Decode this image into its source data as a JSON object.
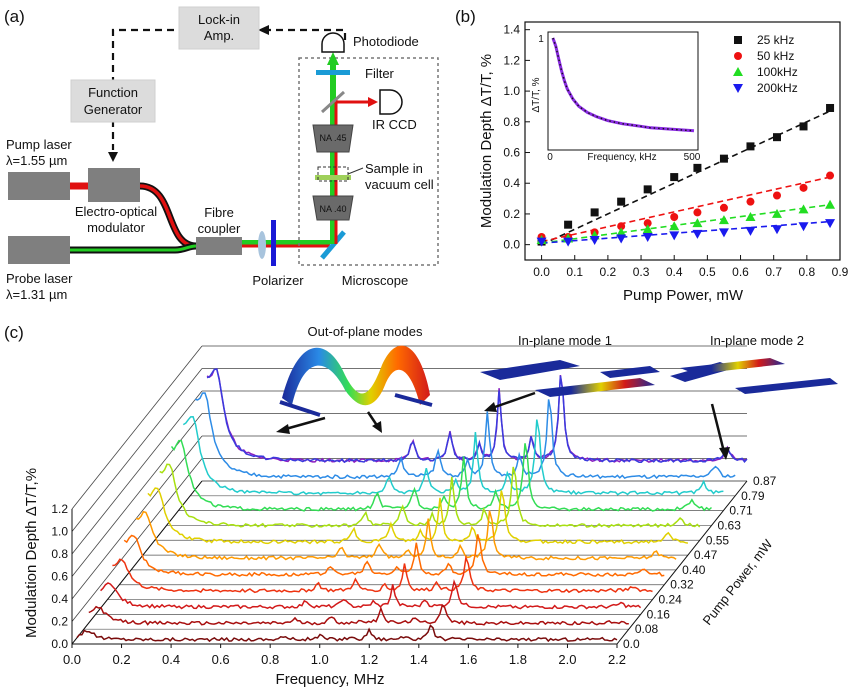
{
  "panels": {
    "a": "(a)",
    "b": "(b)",
    "c": "(c)"
  },
  "setup": {
    "lockin_line1": "Lock-in",
    "lockin_line2": "Amp.",
    "photodiode": "Photodiode",
    "function_line1": "Function",
    "function_line2": "Generator",
    "filter": "Filter",
    "ir_ccd": "IR CCD",
    "na45": "NA .45",
    "na40": "NA .40",
    "sample_line1": "Sample in",
    "sample_line2": "vacuum cell",
    "pump_line1": "Pump laser",
    "pump_line2": "λ=1.55 µm",
    "eom_line1": "Electro-optical",
    "eom_line2": "modulator",
    "fibre_line1": "Fibre",
    "fibre_line2": "coupler",
    "probe_line1": "Probe laser",
    "probe_line2": "λ=1.31 µm",
    "polarizer": "Polarizer",
    "microscope": "Microscope"
  },
  "chart_data": [
    {
      "type": "scatter",
      "panel": "b",
      "xlabel": "Pump Power, mW",
      "ylabel": "Modulation Depth ΔT/T, %",
      "xlim": [
        -0.05,
        0.9
      ],
      "ylim": [
        -0.1,
        1.45
      ],
      "xticks": [
        "0.0",
        "0.1",
        "0.2",
        "0.3",
        "0.4",
        "0.5",
        "0.6",
        "0.7",
        "0.8",
        "0.9"
      ],
      "yticks": [
        "0.0",
        "0.2",
        "0.4",
        "0.6",
        "0.8",
        "1.0",
        "1.2",
        "1.4"
      ],
      "legend_position": "top-right",
      "series": [
        {
          "name": "25  kHz",
          "color": "#111111",
          "marker": "square",
          "x": [
            0.0,
            0.08,
            0.16,
            0.24,
            0.32,
            0.4,
            0.47,
            0.55,
            0.63,
            0.71,
            0.79,
            0.87
          ],
          "y": [
            0.02,
            0.13,
            0.21,
            0.28,
            0.36,
            0.44,
            0.5,
            0.56,
            0.64,
            0.7,
            0.77,
            0.89
          ],
          "fit": [
            0.0,
            0.0,
            0.87,
            0.87
          ]
        },
        {
          "name": "50  kHz",
          "color": "#ee1111",
          "marker": "circle",
          "x": [
            0.0,
            0.08,
            0.16,
            0.24,
            0.32,
            0.4,
            0.47,
            0.55,
            0.63,
            0.71,
            0.79,
            0.87
          ],
          "y": [
            0.05,
            0.05,
            0.08,
            0.12,
            0.14,
            0.18,
            0.21,
            0.24,
            0.28,
            0.32,
            0.37,
            0.45
          ],
          "fit": [
            0.0,
            0.02,
            0.87,
            0.44
          ]
        },
        {
          "name": "100kHz",
          "color": "#22dd22",
          "marker": "triangle-up",
          "x": [
            0.0,
            0.08,
            0.16,
            0.24,
            0.32,
            0.4,
            0.47,
            0.55,
            0.63,
            0.71,
            0.79,
            0.87
          ],
          "y": [
            0.03,
            0.04,
            0.06,
            0.08,
            0.1,
            0.12,
            0.14,
            0.16,
            0.18,
            0.2,
            0.23,
            0.26
          ],
          "fit": [
            0.0,
            0.01,
            0.87,
            0.26
          ]
        },
        {
          "name": "200kHz",
          "color": "#1a1aee",
          "marker": "triangle-down",
          "x": [
            0.0,
            0.08,
            0.16,
            0.24,
            0.32,
            0.4,
            0.47,
            0.55,
            0.63,
            0.71,
            0.79,
            0.87
          ],
          "y": [
            0.02,
            0.02,
            0.03,
            0.04,
            0.05,
            0.06,
            0.07,
            0.08,
            0.09,
            0.1,
            0.12,
            0.14
          ],
          "fit": [
            0.0,
            0.01,
            0.87,
            0.15
          ]
        }
      ]
    },
    {
      "type": "line",
      "panel": "b-inset",
      "xlabel": "Frequency, kHz",
      "ylabel": "ΔT/T, %",
      "xlim": [
        0,
        500
      ],
      "ylim": [
        0,
        1
      ],
      "xticks": [
        "0",
        "500"
      ],
      "yticks": [
        "0",
        "1"
      ],
      "series": [
        {
          "name": "",
          "color": "#8a2be2",
          "x": [
            10,
            20,
            30,
            40,
            50,
            60,
            80,
            100,
            130,
            160,
            200,
            250,
            300,
            350,
            400,
            450,
            500
          ],
          "y": [
            1.0,
            0.92,
            0.8,
            0.68,
            0.58,
            0.5,
            0.4,
            0.33,
            0.27,
            0.23,
            0.19,
            0.16,
            0.14,
            0.12,
            0.11,
            0.1,
            0.09
          ]
        }
      ]
    },
    {
      "type": "line",
      "panel": "c",
      "xlabel": "Frequency, MHz",
      "ylabel": "Modulation Depth ΔT/T,%",
      "zlabel": "Pump Power, mW",
      "xlim": [
        0.0,
        2.2
      ],
      "ylim": [
        0.0,
        1.2
      ],
      "xticks": [
        "0.0",
        "0.2",
        "0.4",
        "0.6",
        "0.8",
        "1.0",
        "1.2",
        "1.4",
        "1.6",
        "1.8",
        "2.0",
        "2.2"
      ],
      "yticks": [
        "0.0",
        "0.2",
        "0.4",
        "0.6",
        "0.8",
        "1.0",
        "1.2"
      ],
      "zticks": [
        "0.0",
        "0.08",
        "0.16",
        "0.24",
        "0.32",
        "0.40",
        "0.47",
        "0.55",
        "0.63",
        "0.71",
        "0.79",
        "0.87"
      ],
      "series_colors": [
        "#7a0c0c",
        "#a80f0f",
        "#d21a1a",
        "#ee3311",
        "#ff6a00",
        "#ff9a00",
        "#e0d000",
        "#a8e010",
        "#33dd55",
        "#22cccc",
        "#2e8ce6",
        "#3b3bdd",
        "#8a1fc0"
      ],
      "annotations": [
        "Out-of-plane modes",
        "In-plane mode 1",
        "In-plane mode 2"
      ]
    }
  ]
}
